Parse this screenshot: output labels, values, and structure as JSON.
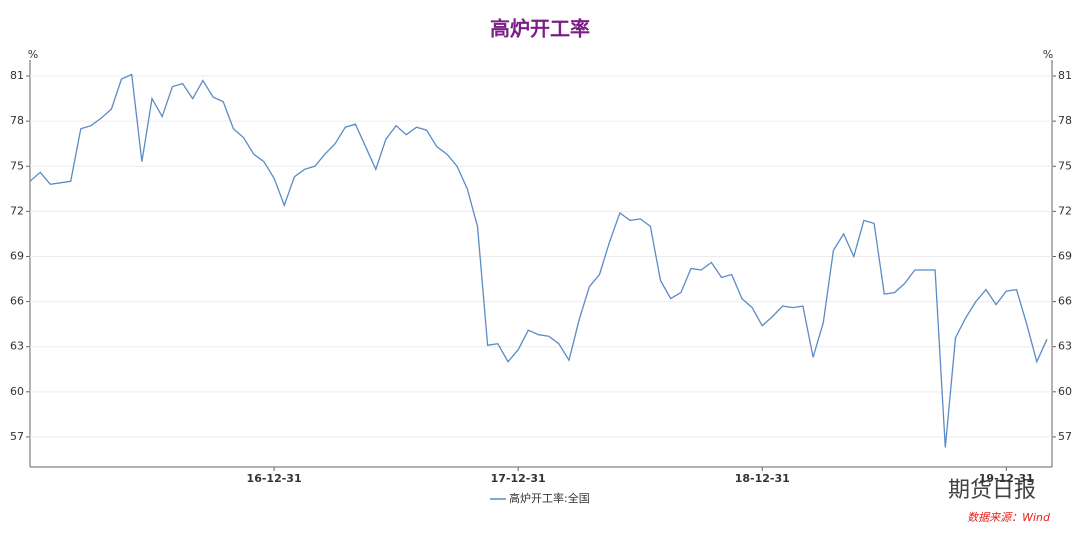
{
  "chart_data": {
    "type": "line",
    "title": "高炉开工率",
    "y_unit": "%",
    "y2_unit": "%",
    "categories": [
      null,
      null,
      null,
      null,
      null,
      null,
      null,
      null,
      null,
      null,
      null,
      null,
      null,
      null,
      null,
      null,
      null,
      null,
      null,
      null,
      null,
      null,
      null,
      null,
      "16-12-31",
      null,
      null,
      null,
      null,
      null,
      null,
      null,
      null,
      null,
      null,
      null,
      null,
      null,
      null,
      null,
      null,
      null,
      null,
      null,
      null,
      null,
      null,
      null,
      "17-12-31",
      null,
      null,
      null,
      null,
      null,
      null,
      null,
      null,
      null,
      null,
      null,
      null,
      null,
      null,
      null,
      null,
      null,
      null,
      null,
      null,
      null,
      null,
      null,
      "18-12-31",
      null,
      null,
      null,
      null,
      null,
      null,
      null,
      null,
      null,
      null,
      null,
      null,
      null,
      null,
      null,
      null,
      null,
      null,
      null,
      null,
      null,
      null,
      null,
      "19-12-31",
      null,
      null,
      null,
      null
    ],
    "series": [
      {
        "name": "高炉开工率:全国",
        "color": "#5b8bc5",
        "values": [
          74.0,
          74.6,
          73.8,
          73.9,
          74.0,
          77.5,
          77.7,
          78.2,
          78.8,
          80.8,
          81.1,
          75.3,
          79.5,
          78.3,
          80.3,
          80.5,
          79.5,
          80.7,
          79.6,
          79.3,
          77.5,
          76.9,
          75.8,
          75.3,
          74.2,
          72.4,
          74.3,
          74.8,
          75.0,
          75.8,
          76.5,
          77.6,
          77.8,
          76.3,
          74.8,
          76.8,
          77.7,
          77.1,
          77.6,
          77.4,
          76.3,
          75.8,
          75.0,
          73.5,
          71.0,
          63.1,
          63.2,
          62.0,
          62.8,
          64.1,
          63.8,
          63.7,
          63.2,
          62.1,
          64.8,
          67.0,
          67.8,
          70.0,
          71.9,
          71.4,
          71.5,
          71.0,
          67.4,
          66.2,
          66.6,
          68.2,
          68.1,
          68.6,
          67.6,
          67.8,
          66.2,
          65.6,
          64.4,
          65.0,
          65.7,
          65.6,
          65.7,
          62.3,
          64.6,
          69.4,
          70.5,
          69.0,
          71.4,
          71.2,
          66.5,
          66.6,
          67.2,
          68.1,
          68.1,
          68.1,
          56.3,
          63.6,
          64.9,
          66.0,
          66.8,
          65.8,
          66.7,
          66.8,
          64.5,
          62.0,
          63.5
        ]
      }
    ],
    "ylim": [
      55,
      82
    ],
    "yticks": [
      57,
      60,
      63,
      66,
      69,
      72,
      75,
      78,
      81
    ],
    "grid": true,
    "legend": "bottom",
    "watermark": "期货日报",
    "source": "数据来源：Wind"
  }
}
